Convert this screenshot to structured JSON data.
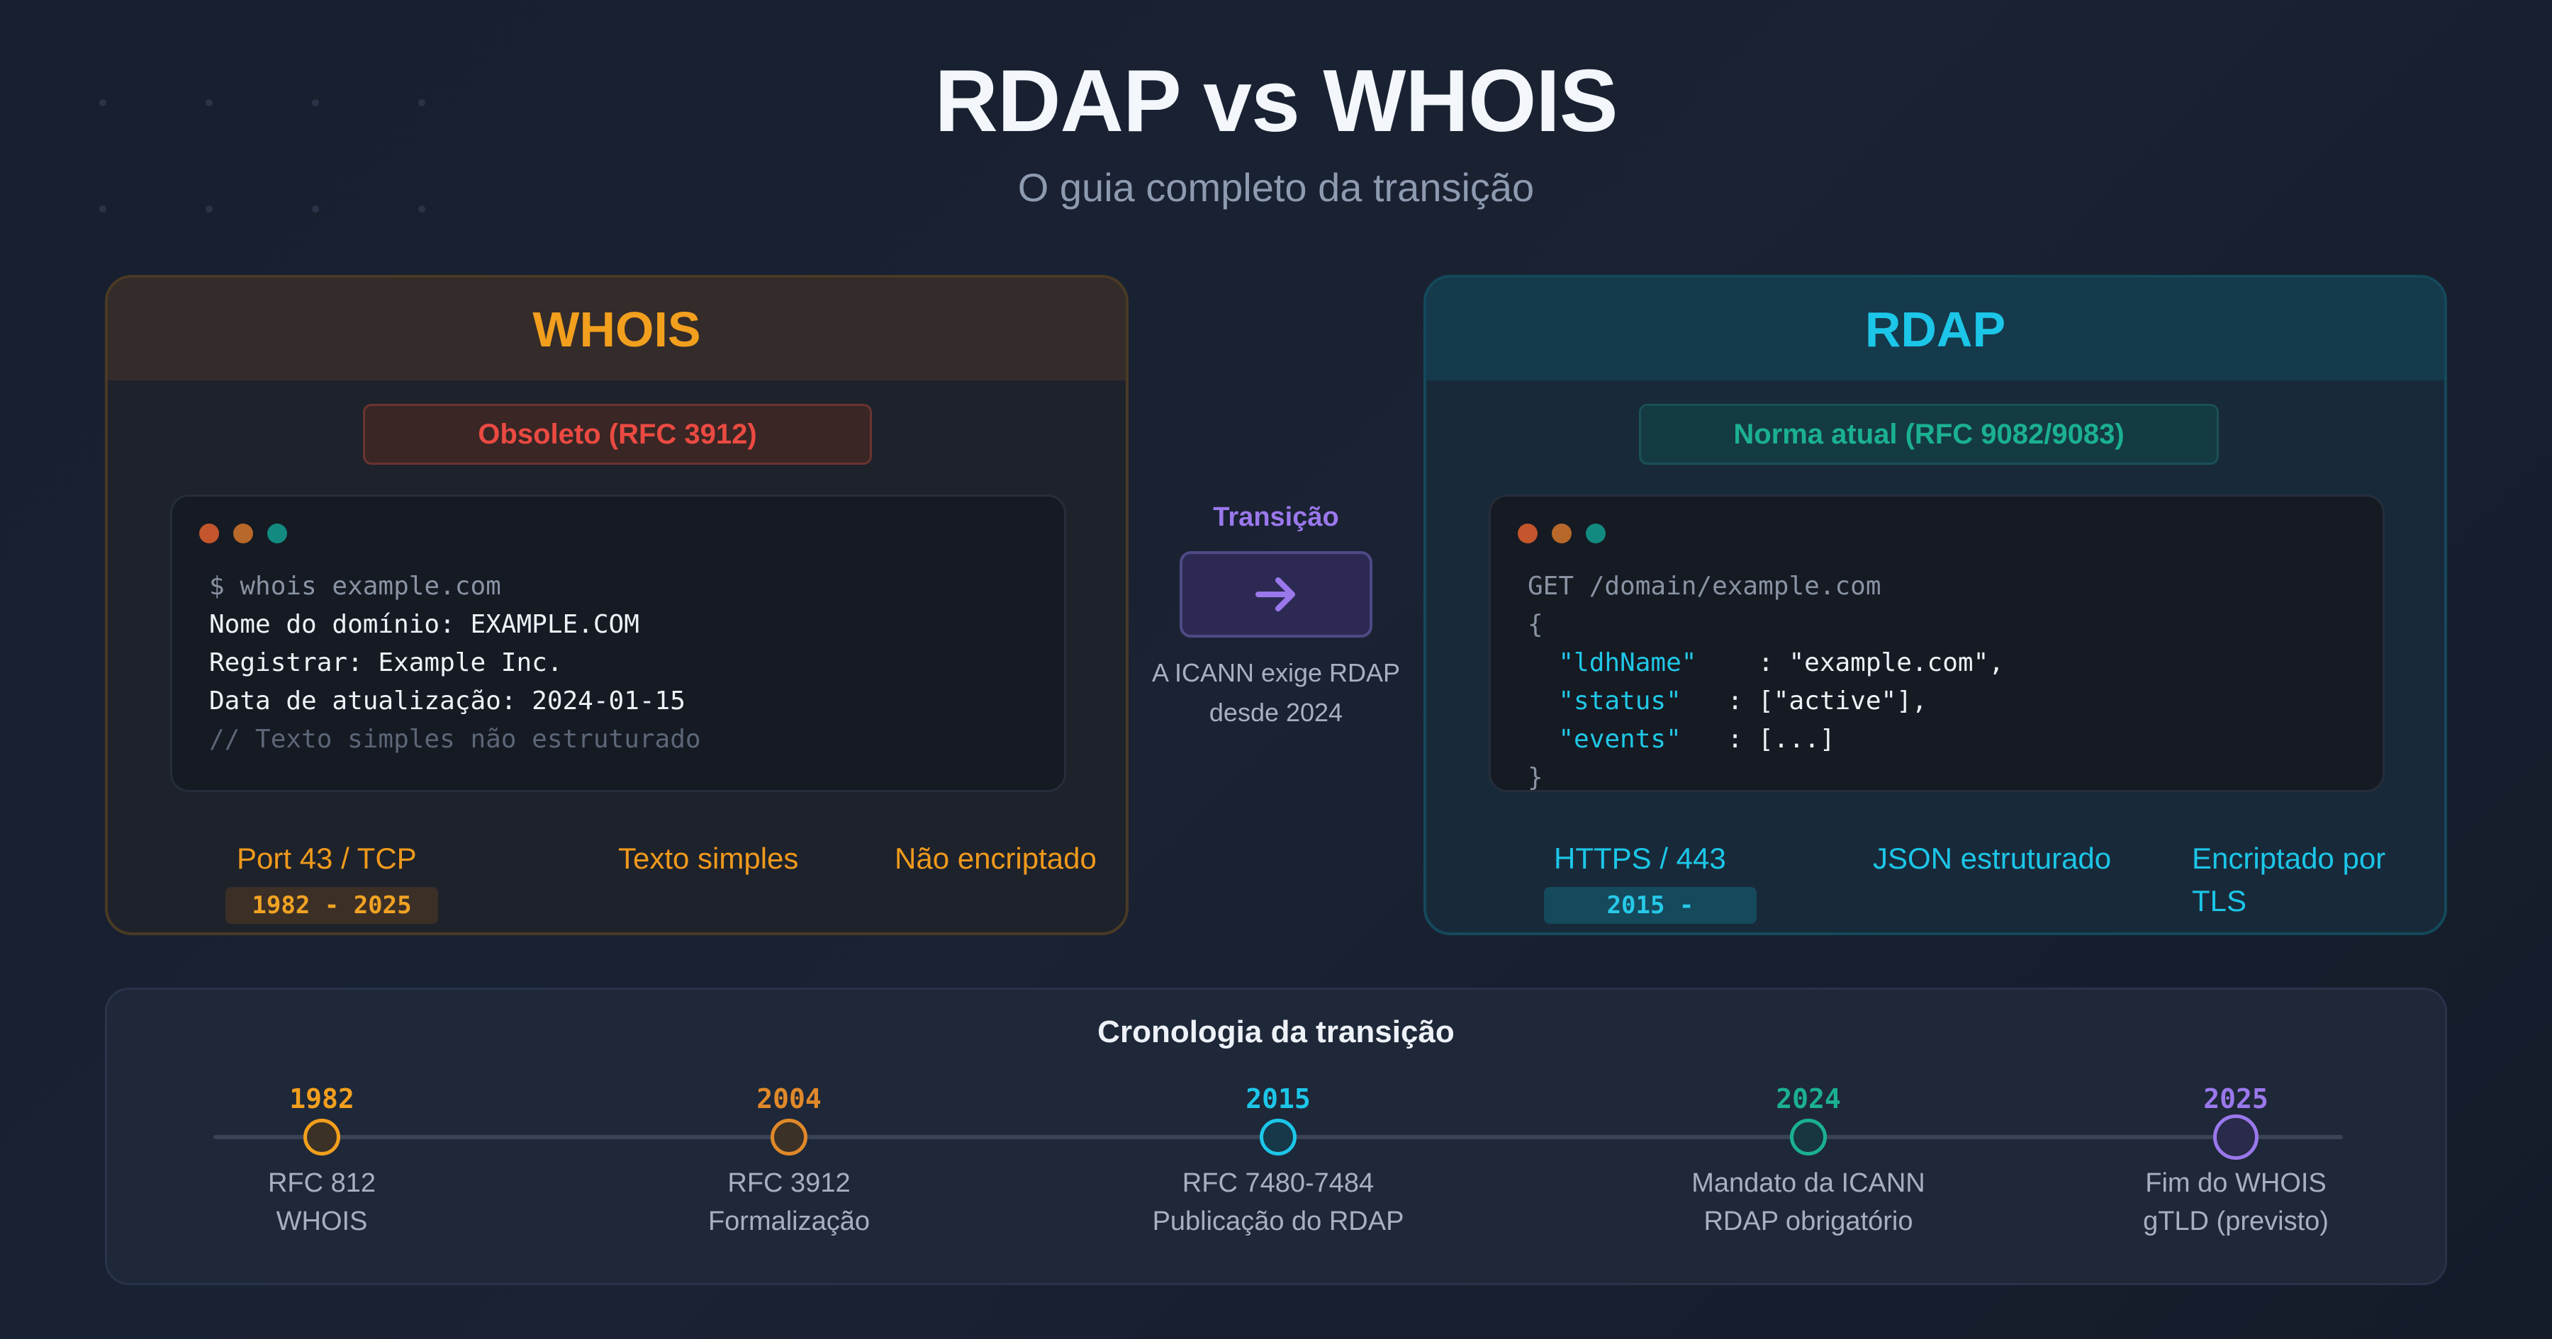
{
  "title": "RDAP vs WHOIS",
  "subtitle": "O guia completo da transição",
  "whois": {
    "heading": "WHOIS",
    "status_badge": "Obsoleto (RFC 3912)",
    "terminal_lines": [
      "$ whois example.com",
      "Nome do domínio: EXAMPLE.COM",
      "Registrar: Example Inc.",
      "Data de atualização: 2024-01-15",
      "// Texto simples não estruturado"
    ],
    "features": [
      "Port 43 / TCP",
      "Texto simples",
      "Não encriptado"
    ],
    "years": "1982 - 2025",
    "accent_color": "#f29f1e"
  },
  "rdap": {
    "heading": "RDAP",
    "status_badge": "Norma atual (RFC 9082/9083)",
    "request": "GET /domain/example.com",
    "json_open": "{",
    "json_close": "}",
    "json_fields": [
      {
        "key": "\"ldhName\"",
        "sep": "    : ",
        "value": "\"example.com\","
      },
      {
        "key": "\"status\"",
        "sep": "   : ",
        "value": "[\"active\"],"
      },
      {
        "key": "\"events\"",
        "sep": "   : ",
        "value": "[...]"
      }
    ],
    "features": [
      "HTTPS / 443",
      "JSON estruturado",
      "Encriptado por TLS"
    ],
    "years": "2015 -",
    "accent_color": "#1cc6e8"
  },
  "transition": {
    "label": "Transição",
    "note_line1": "A ICANN exige RDAP",
    "note_line2": "desde 2024",
    "icon": "arrow-right-icon"
  },
  "timeline": {
    "title": "Cronologia da transição",
    "events": [
      {
        "year": "1982",
        "line1": "RFC 812",
        "line2": "WHOIS",
        "color": "#f29f1e"
      },
      {
        "year": "2004",
        "line1": "RFC 3912",
        "line2": "Formalização",
        "color": "#e0892a"
      },
      {
        "year": "2015",
        "line1": "RFC 7480-7484",
        "line2": "Publicação do RDAP",
        "color": "#1cc6e8"
      },
      {
        "year": "2024",
        "line1": "Mandato da ICANN",
        "line2": "RDAP obrigatório",
        "color": "#1bb092"
      },
      {
        "year": "2025",
        "line1": "Fim do WHOIS",
        "line2": "gTLD (previsto)",
        "color": "#9a78ec"
      }
    ]
  }
}
